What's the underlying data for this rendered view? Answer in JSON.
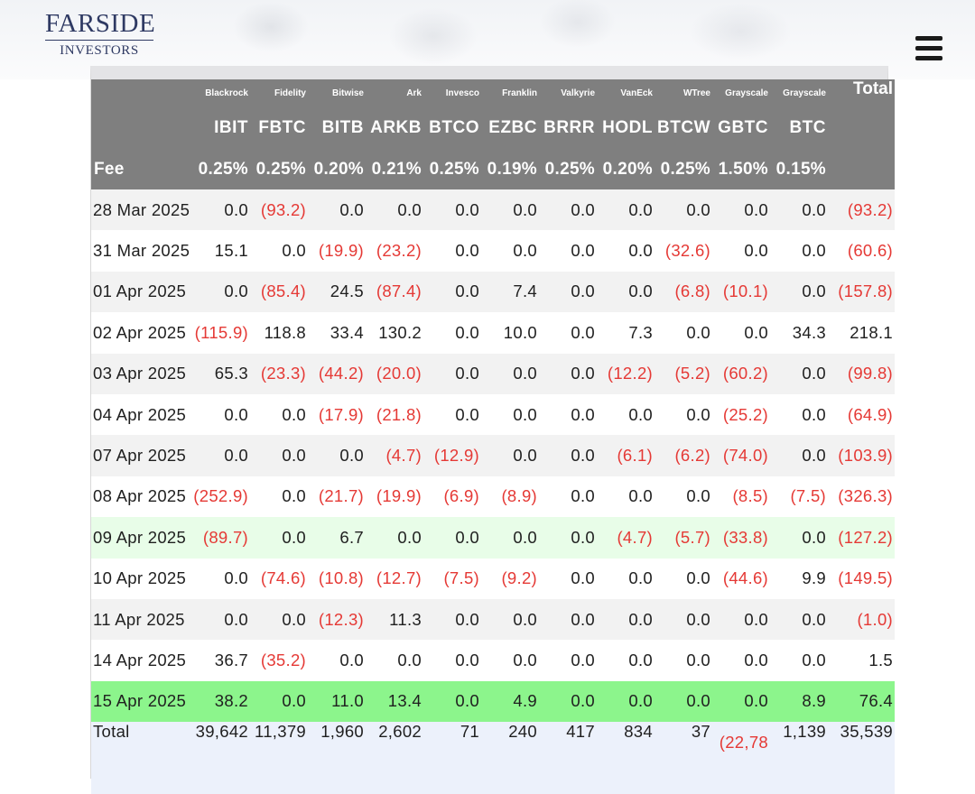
{
  "header": {
    "logo_top": "FARSIDE",
    "logo_bottom": "INVESTORS"
  },
  "table": {
    "issuers": [
      "Blackrock",
      "Fidelity",
      "Bitwise",
      "Ark",
      "Invesco",
      "Franklin",
      "Valkyrie",
      "VanEck",
      "WTree",
      "Grayscale",
      "Grayscale"
    ],
    "total_label": "Total",
    "tickers": [
      "IBIT",
      "FBTC",
      "BITB",
      "ARKB",
      "BTCO",
      "EZBC",
      "BRRR",
      "HODL",
      "BTCW",
      "GBTC",
      "BTC"
    ],
    "fee_label": "Fee",
    "fees": [
      "0.25%",
      "0.25%",
      "0.20%",
      "0.21%",
      "0.25%",
      "0.19%",
      "0.25%",
      "0.20%",
      "0.25%",
      "1.50%",
      "0.15%"
    ],
    "rows": [
      {
        "date": "28 Mar 2025",
        "shade": "odd",
        "values": [
          "0.0",
          "(93.2)",
          "0.0",
          "0.0",
          "0.0",
          "0.0",
          "0.0",
          "0.0",
          "0.0",
          "0.0",
          "0.0",
          "(93.2)"
        ]
      },
      {
        "date": "31 Mar 2025",
        "shade": "even",
        "values": [
          "15.1",
          "0.0",
          "(19.9)",
          "(23.2)",
          "0.0",
          "0.0",
          "0.0",
          "0.0",
          "(32.6)",
          "0.0",
          "0.0",
          "(60.6)"
        ]
      },
      {
        "date": "01 Apr 2025",
        "shade": "odd",
        "values": [
          "0.0",
          "(85.4)",
          "24.5",
          "(87.4)",
          "0.0",
          "7.4",
          "0.0",
          "0.0",
          "(6.8)",
          "(10.1)",
          "0.0",
          "(157.8)"
        ]
      },
      {
        "date": "02 Apr 2025",
        "shade": "even",
        "values": [
          "(115.9)",
          "118.8",
          "33.4",
          "130.2",
          "0.0",
          "10.0",
          "0.0",
          "7.3",
          "0.0",
          "0.0",
          "34.3",
          "218.1"
        ]
      },
      {
        "date": "03 Apr 2025",
        "shade": "odd",
        "values": [
          "65.3",
          "(23.3)",
          "(44.2)",
          "(20.0)",
          "0.0",
          "0.0",
          "0.0",
          "(12.2)",
          "(5.2)",
          "(60.2)",
          "0.0",
          "(99.8)"
        ]
      },
      {
        "date": "04 Apr 2025",
        "shade": "even",
        "values": [
          "0.0",
          "0.0",
          "(17.9)",
          "(21.8)",
          "0.0",
          "0.0",
          "0.0",
          "0.0",
          "0.0",
          "(25.2)",
          "0.0",
          "(64.9)"
        ]
      },
      {
        "date": "07 Apr 2025",
        "shade": "odd",
        "values": [
          "0.0",
          "0.0",
          "0.0",
          "(4.7)",
          "(12.9)",
          "0.0",
          "0.0",
          "(6.1)",
          "(6.2)",
          "(74.0)",
          "0.0",
          "(103.9)"
        ]
      },
      {
        "date": "08 Apr 2025",
        "shade": "even",
        "values": [
          "(252.9)",
          "0.0",
          "(21.7)",
          "(19.9)",
          "(6.9)",
          "(8.9)",
          "0.0",
          "0.0",
          "0.0",
          "(8.5)",
          "(7.5)",
          "(326.3)"
        ]
      },
      {
        "date": "09 Apr 2025",
        "shade": "light-green",
        "values": [
          "(89.7)",
          "0.0",
          "6.7",
          "0.0",
          "0.0",
          "0.0",
          "0.0",
          "(4.7)",
          "(5.7)",
          "(33.8)",
          "0.0",
          "(127.2)"
        ]
      },
      {
        "date": "10 Apr 2025",
        "shade": "even",
        "values": [
          "0.0",
          "(74.6)",
          "(10.8)",
          "(12.7)",
          "(7.5)",
          "(9.2)",
          "0.0",
          "0.0",
          "0.0",
          "(44.6)",
          "9.9",
          "(149.5)"
        ]
      },
      {
        "date": "11 Apr 2025",
        "shade": "odd",
        "values": [
          "0.0",
          "0.0",
          "(12.3)",
          "11.3",
          "0.0",
          "0.0",
          "0.0",
          "0.0",
          "0.0",
          "0.0",
          "0.0",
          "(1.0)"
        ]
      },
      {
        "date": "14 Apr 2025",
        "shade": "even",
        "values": [
          "36.7",
          "(35.2)",
          "0.0",
          "0.0",
          "0.0",
          "0.0",
          "0.0",
          "0.0",
          "0.0",
          "0.0",
          "0.0",
          "1.5"
        ]
      },
      {
        "date": "15 Apr 2025",
        "shade": "bright-green",
        "values": [
          "38.2",
          "0.0",
          "11.0",
          "13.4",
          "0.0",
          "4.9",
          "0.0",
          "0.0",
          "0.0",
          "0.0",
          "8.9",
          "76.4"
        ]
      }
    ],
    "footer": {
      "label": "Total",
      "values": [
        "39,642",
        "11,379",
        "1,960",
        "2,602",
        "71",
        "240",
        "417",
        "834",
        "37",
        "(22,78",
        "1,139",
        "35,539"
      ]
    }
  },
  "colors": {
    "header_bg": "#7f7f7f",
    "negative": "#e53935",
    "highlight_light": "#e8fde8",
    "highlight_bright": "#8cf58c",
    "footer_bg": "#ecf1fb",
    "logo": "#2f3a63"
  }
}
